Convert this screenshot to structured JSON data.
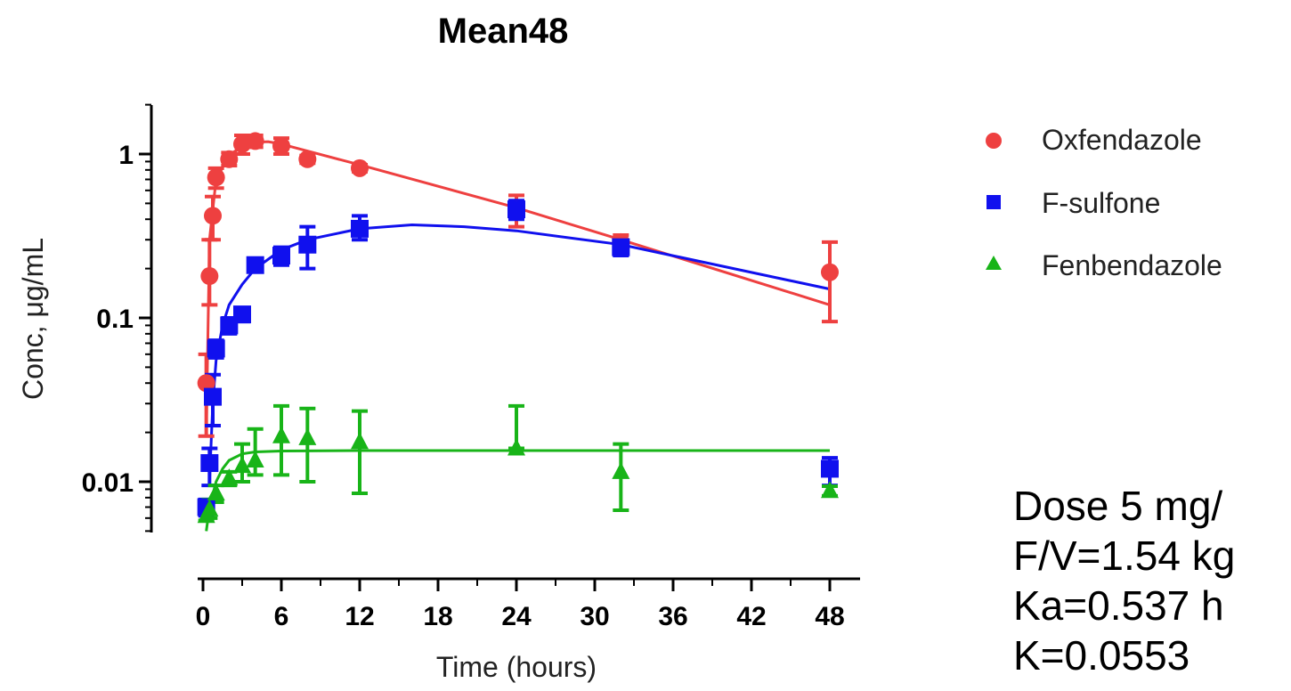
{
  "chart_data": {
    "type": "scatter",
    "title": "Mean48",
    "xlabel": "Time (hours)",
    "ylabel": "Conc, μg/mL",
    "xlim": [
      0,
      48
    ],
    "ylim": [
      0.005,
      2
    ],
    "yscale": "log",
    "xticks": [
      "0",
      "6",
      "12",
      "18",
      "24",
      "30",
      "36",
      "42",
      "48"
    ],
    "yticks": [
      "0.01",
      "0.1",
      "1"
    ],
    "legend_position": "right",
    "series": [
      {
        "name": "Oxfendazole",
        "color": "#ee4040",
        "marker": "circle",
        "points": [
          {
            "x": 0.25,
            "y": 0.04,
            "lo": 0.019,
            "hi": 0.06
          },
          {
            "x": 0.5,
            "y": 0.18,
            "lo": 0.12,
            "hi": 0.3
          },
          {
            "x": 0.75,
            "y": 0.42,
            "lo": 0.3,
            "hi": 0.55
          },
          {
            "x": 1,
            "y": 0.72,
            "lo": 0.62,
            "hi": 0.82
          },
          {
            "x": 2,
            "y": 0.93,
            "lo": 0.85,
            "hi": 1.02
          },
          {
            "x": 3,
            "y": 1.15,
            "lo": 1.0,
            "hi": 1.3
          },
          {
            "x": 4,
            "y": 1.2,
            "lo": 1.1,
            "hi": 1.3
          },
          {
            "x": 6,
            "y": 1.12,
            "lo": 1.0,
            "hi": 1.25
          },
          {
            "x": 8,
            "y": 0.93,
            "lo": 0.88,
            "hi": 0.98
          },
          {
            "x": 12,
            "y": 0.82,
            "lo": 0.78,
            "hi": 0.86
          },
          {
            "x": 24,
            "y": 0.46,
            "lo": 0.36,
            "hi": 0.56
          },
          {
            "x": 32,
            "y": 0.29,
            "lo": 0.26,
            "hi": 0.32
          },
          {
            "x": 48,
            "y": 0.19,
            "lo": 0.095,
            "hi": 0.29
          }
        ],
        "fit": [
          [
            0.25,
            0.02
          ],
          [
            0.5,
            0.3
          ],
          [
            1,
            0.7
          ],
          [
            2,
            0.98
          ],
          [
            3,
            1.12
          ],
          [
            4,
            1.18
          ],
          [
            5,
            1.19
          ],
          [
            6,
            1.15
          ],
          [
            12,
            0.86
          ],
          [
            24,
            0.47
          ],
          [
            32,
            0.3
          ],
          [
            48,
            0.12
          ]
        ]
      },
      {
        "name": "F-sulfone",
        "color": "#1010ee",
        "marker": "square",
        "points": [
          {
            "x": 0.25,
            "y": 0.007,
            "lo": 0.0062,
            "hi": 0.0078
          },
          {
            "x": 0.5,
            "y": 0.013,
            "lo": 0.0095,
            "hi": 0.016
          },
          {
            "x": 0.75,
            "y": 0.033,
            "lo": 0.022,
            "hi": 0.045
          },
          {
            "x": 1,
            "y": 0.065,
            "lo": 0.057,
            "hi": 0.073
          },
          {
            "x": 2,
            "y": 0.09,
            "lo": 0.08,
            "hi": 0.1
          },
          {
            "x": 3,
            "y": 0.105,
            "lo": 0.095,
            "hi": 0.115
          },
          {
            "x": 4,
            "y": 0.21,
            "lo": 0.195,
            "hi": 0.225
          },
          {
            "x": 6,
            "y": 0.24,
            "lo": 0.21,
            "hi": 0.27
          },
          {
            "x": 8,
            "y": 0.28,
            "lo": 0.2,
            "hi": 0.36
          },
          {
            "x": 12,
            "y": 0.35,
            "lo": 0.3,
            "hi": 0.42
          },
          {
            "x": 24,
            "y": 0.46,
            "lo": 0.4,
            "hi": 0.52
          },
          {
            "x": 32,
            "y": 0.27,
            "lo": 0.24,
            "hi": 0.3
          },
          {
            "x": 48,
            "y": 0.012,
            "lo": 0.0095,
            "hi": 0.014
          }
        ],
        "fit": [
          [
            0.5,
            0.01
          ],
          [
            0.75,
            0.03
          ],
          [
            1,
            0.055
          ],
          [
            1.5,
            0.09
          ],
          [
            2,
            0.12
          ],
          [
            3,
            0.16
          ],
          [
            4,
            0.2
          ],
          [
            6,
            0.26
          ],
          [
            8,
            0.3
          ],
          [
            12,
            0.35
          ],
          [
            16,
            0.37
          ],
          [
            20,
            0.36
          ],
          [
            24,
            0.34
          ],
          [
            32,
            0.28
          ],
          [
            48,
            0.15
          ]
        ]
      },
      {
        "name": "Fenbendazole",
        "color": "#18b418",
        "marker": "triangle",
        "points": [
          {
            "x": 0.25,
            "y": 0.0062,
            "lo": 0.0058,
            "hi": 0.0068
          },
          {
            "x": 0.5,
            "y": 0.0068,
            "lo": 0.006,
            "hi": 0.0078
          },
          {
            "x": 1,
            "y": 0.0085,
            "lo": 0.0075,
            "hi": 0.0095
          },
          {
            "x": 2,
            "y": 0.0105,
            "lo": 0.0095,
            "hi": 0.0115
          },
          {
            "x": 3,
            "y": 0.0125,
            "lo": 0.01,
            "hi": 0.017
          },
          {
            "x": 4,
            "y": 0.0135,
            "lo": 0.011,
            "hi": 0.021
          },
          {
            "x": 6,
            "y": 0.019,
            "lo": 0.011,
            "hi": 0.029
          },
          {
            "x": 8,
            "y": 0.0185,
            "lo": 0.01,
            "hi": 0.028
          },
          {
            "x": 12,
            "y": 0.0175,
            "lo": 0.0085,
            "hi": 0.027
          },
          {
            "x": 24,
            "y": 0.016,
            "lo": 0.016,
            "hi": 0.029
          },
          {
            "x": 32,
            "y": 0.0115,
            "lo": 0.0067,
            "hi": 0.017
          },
          {
            "x": 48,
            "y": 0.0088,
            "lo": 0.0082,
            "hi": 0.0094
          }
        ],
        "fit": [
          [
            0.25,
            0.005
          ],
          [
            0.5,
            0.007
          ],
          [
            1,
            0.01
          ],
          [
            1.5,
            0.012
          ],
          [
            2,
            0.0135
          ],
          [
            3,
            0.0148
          ],
          [
            4,
            0.0152
          ],
          [
            6,
            0.0154
          ],
          [
            12,
            0.0155
          ],
          [
            24,
            0.0155
          ],
          [
            48,
            0.0155
          ]
        ]
      }
    ]
  },
  "annotation": {
    "lines": [
      "Dose 5 mg/",
      "F/V=1.54 kg",
      "Ka=0.537 h",
      "K=0.0553"
    ]
  }
}
